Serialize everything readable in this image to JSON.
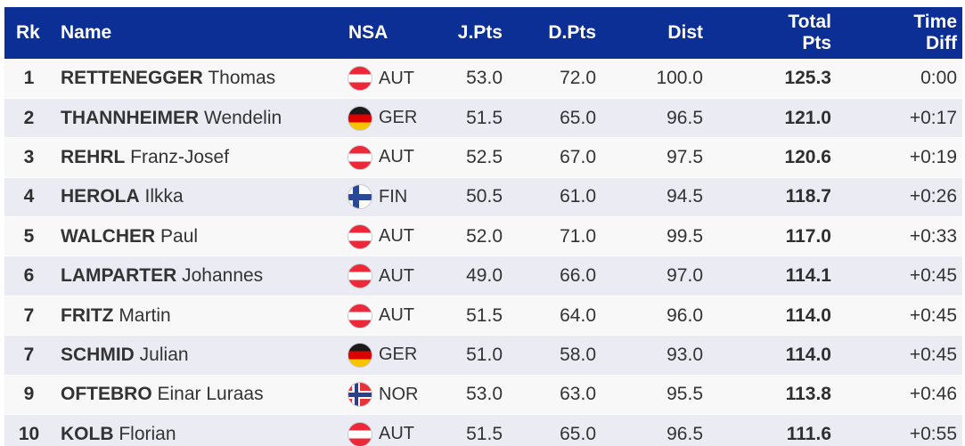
{
  "table": {
    "columns": [
      {
        "key": "rank",
        "label": "Rk"
      },
      {
        "key": "name",
        "label": "Name"
      },
      {
        "key": "nsa",
        "label": "NSA"
      },
      {
        "key": "jpts",
        "label": "J.Pts"
      },
      {
        "key": "dpts",
        "label": "D.Pts"
      },
      {
        "key": "dist",
        "label": "Dist"
      },
      {
        "key": "total",
        "label": "Total Pts",
        "line1": "Total",
        "line2": "Pts"
      },
      {
        "key": "timediff",
        "label": "Time Diff",
        "line1": "Time",
        "line2": "Diff"
      }
    ],
    "rows": [
      {
        "rank": "1",
        "last_name": "RETTENEGGER",
        "first_name": "Thomas",
        "nsa": "AUT",
        "flag": "AUT",
        "jpts": "53.0",
        "dpts": "72.0",
        "dist": "100.0",
        "total": "125.3",
        "timediff": "0:00"
      },
      {
        "rank": "2",
        "last_name": "THANNHEIMER",
        "first_name": "Wendelin",
        "nsa": "GER",
        "flag": "GER",
        "jpts": "51.5",
        "dpts": "65.0",
        "dist": "96.5",
        "total": "121.0",
        "timediff": "+0:17"
      },
      {
        "rank": "3",
        "last_name": "REHRL",
        "first_name": "Franz-Josef",
        "nsa": "AUT",
        "flag": "AUT",
        "jpts": "52.5",
        "dpts": "67.0",
        "dist": "97.5",
        "total": "120.6",
        "timediff": "+0:19"
      },
      {
        "rank": "4",
        "last_name": "HEROLA",
        "first_name": "Ilkka",
        "nsa": "FIN",
        "flag": "FIN",
        "jpts": "50.5",
        "dpts": "61.0",
        "dist": "94.5",
        "total": "118.7",
        "timediff": "+0:26"
      },
      {
        "rank": "5",
        "last_name": "WALCHER",
        "first_name": "Paul",
        "nsa": "AUT",
        "flag": "AUT",
        "jpts": "52.0",
        "dpts": "71.0",
        "dist": "99.5",
        "total": "117.0",
        "timediff": "+0:33"
      },
      {
        "rank": "6",
        "last_name": "LAMPARTER",
        "first_name": "Johannes",
        "nsa": "AUT",
        "flag": "AUT",
        "jpts": "49.0",
        "dpts": "66.0",
        "dist": "97.0",
        "total": "114.1",
        "timediff": "+0:45"
      },
      {
        "rank": "7",
        "last_name": "FRITZ",
        "first_name": "Martin",
        "nsa": "AUT",
        "flag": "AUT",
        "jpts": "51.5",
        "dpts": "64.0",
        "dist": "96.0",
        "total": "114.0",
        "timediff": "+0:45"
      },
      {
        "rank": "7",
        "last_name": "SCHMID",
        "first_name": "Julian",
        "nsa": "GER",
        "flag": "GER",
        "jpts": "51.0",
        "dpts": "58.0",
        "dist": "93.0",
        "total": "114.0",
        "timediff": "+0:45"
      },
      {
        "rank": "9",
        "last_name": "OFTEBRO",
        "first_name": "Einar Luraas",
        "nsa": "NOR",
        "flag": "NOR",
        "jpts": "53.0",
        "dpts": "63.0",
        "dist": "95.5",
        "total": "113.8",
        "timediff": "+0:46"
      },
      {
        "rank": "10",
        "last_name": "KOLB",
        "first_name": "Florian",
        "nsa": "AUT",
        "flag": "AUT",
        "jpts": "51.5",
        "dpts": "65.0",
        "dist": "96.5",
        "total": "111.6",
        "timediff": "+0:55"
      }
    ]
  },
  "colors": {
    "header_bg": "#0b2f94",
    "header_text": "#ffffff",
    "row_odd_bg": "#f8f8f9",
    "row_even_bg": "#ebebf4",
    "row_text": "#333333",
    "flag_border": "#c9c9cf",
    "flags": {
      "AUT": [
        "#ed2939",
        "#ffffff",
        "#ed2939"
      ],
      "GER": [
        "#1a1a1a",
        "#dd0000",
        "#f8c300"
      ],
      "FIN": [
        "#ffffff",
        "#2b4896"
      ],
      "NOR": [
        "#e63239",
        "#ffffff",
        "#2b3f8f"
      ]
    }
  }
}
